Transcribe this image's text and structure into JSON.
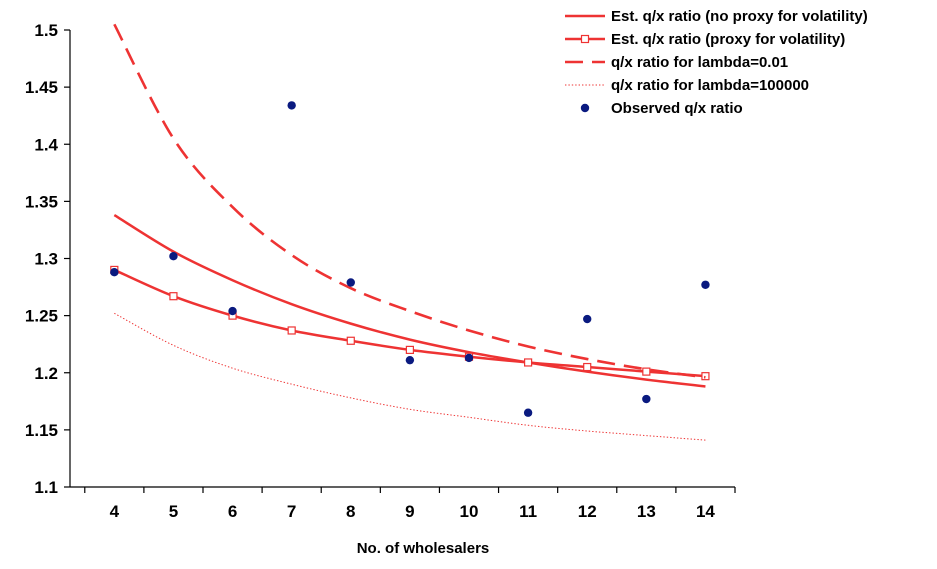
{
  "chart_data": {
    "type": "line",
    "title": "",
    "xlabel": "No. of wholesalers",
    "ylabel": "",
    "x": [
      4,
      5,
      6,
      7,
      8,
      9,
      10,
      11,
      12,
      13,
      14
    ],
    "xlim": [
      3.25,
      14.5
    ],
    "ylim": [
      1.1,
      1.5
    ],
    "y_ticks": [
      "1.1",
      "1.15",
      "1.2",
      "1.25",
      "1.3",
      "1.35",
      "1.4",
      "1.45",
      "1.5"
    ],
    "x_ticks": [
      "4",
      "5",
      "6",
      "7",
      "8",
      "9",
      "10",
      "11",
      "12",
      "13",
      "14"
    ],
    "grid": false,
    "legend_position": "top-right",
    "colors": {
      "line": "#ee3333",
      "marker_fill": "#ffffff",
      "points": "#0a1a80",
      "axis": "#000000"
    },
    "series": [
      {
        "name": "Est. q/x ratio (no proxy for volatility)",
        "style": "solid",
        "values": [
          1.338,
          1.306,
          1.281,
          1.26,
          1.243,
          1.229,
          1.218,
          1.209,
          1.201,
          1.194,
          1.188
        ]
      },
      {
        "name": "Est. q/x ratio (proxy for volatility)",
        "style": "solid-square-markers",
        "values": [
          1.29,
          1.267,
          1.25,
          1.237,
          1.228,
          1.22,
          1.214,
          1.209,
          1.205,
          1.201,
          1.197
        ]
      },
      {
        "name": "q/x ratio for lambda=0.01",
        "style": "dashed",
        "values": [
          1.505,
          1.405,
          1.345,
          1.303,
          1.274,
          1.254,
          1.237,
          1.223,
          1.212,
          1.203,
          1.196
        ]
      },
      {
        "name": "q/x ratio for lambda=100000",
        "style": "dotted",
        "values": [
          1.252,
          1.224,
          1.204,
          1.19,
          1.178,
          1.168,
          1.161,
          1.154,
          1.149,
          1.145,
          1.141
        ]
      },
      {
        "name": "Observed q/x ratio",
        "style": "points",
        "values": [
          1.288,
          1.302,
          1.254,
          1.434,
          1.279,
          1.211,
          1.213,
          1.165,
          1.247,
          1.177,
          1.277
        ]
      }
    ]
  }
}
